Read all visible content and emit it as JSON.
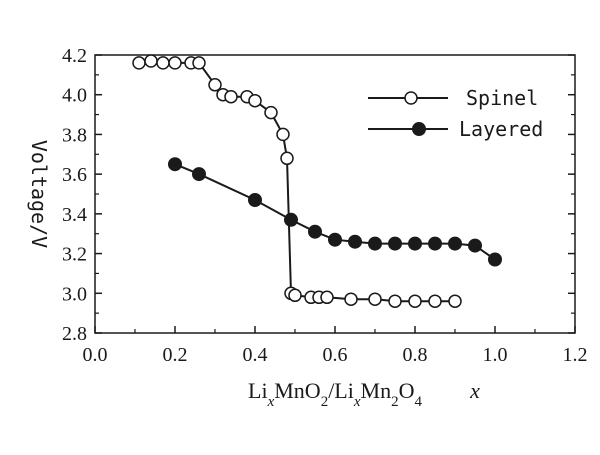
{
  "chart_data": {
    "type": "line",
    "title": "",
    "xlabel": {
      "parts": [
        {
          "text": "Li",
          "style": "normal"
        },
        {
          "text": "x",
          "style": "italic-sub"
        },
        {
          "text": "MnO",
          "style": "normal"
        },
        {
          "text": "2",
          "style": "sub"
        },
        {
          "text": "/Li",
          "style": "normal"
        },
        {
          "text": "x",
          "style": "italic-sub"
        },
        {
          "text": "Mn",
          "style": "normal"
        },
        {
          "text": "2",
          "style": "sub"
        },
        {
          "text": "O",
          "style": "normal"
        },
        {
          "text": "4",
          "style": "sub"
        }
      ],
      "variable": "x"
    },
    "ylabel": "Voltage/V",
    "xlim": [
      0.0,
      1.2
    ],
    "ylim": [
      2.8,
      4.2
    ],
    "xticks": [
      "0.0",
      "0.2",
      "0.4",
      "0.6",
      "0.8",
      "1.0",
      "1.2"
    ],
    "yticks": [
      "2.8",
      "3.0",
      "3.2",
      "3.4",
      "3.6",
      "3.8",
      "4.0",
      "4.2"
    ],
    "grid": false,
    "legend_position": "top-right",
    "series": [
      {
        "name": "Spinel",
        "marker": "open-circle",
        "color": "#1a1a1a",
        "points": [
          [
            0.11,
            4.16
          ],
          [
            0.14,
            4.17
          ],
          [
            0.17,
            4.16
          ],
          [
            0.2,
            4.16
          ],
          [
            0.24,
            4.16
          ],
          [
            0.26,
            4.16
          ],
          [
            0.3,
            4.05
          ],
          [
            0.32,
            4.0
          ],
          [
            0.34,
            3.99
          ],
          [
            0.38,
            3.99
          ],
          [
            0.4,
            3.97
          ],
          [
            0.44,
            3.91
          ],
          [
            0.47,
            3.8
          ],
          [
            0.48,
            3.68
          ],
          [
            0.49,
            3.0
          ],
          [
            0.5,
            2.99
          ],
          [
            0.54,
            2.98
          ],
          [
            0.56,
            2.98
          ],
          [
            0.58,
            2.98
          ],
          [
            0.64,
            2.97
          ],
          [
            0.7,
            2.97
          ],
          [
            0.75,
            2.96
          ],
          [
            0.8,
            2.96
          ],
          [
            0.85,
            2.96
          ],
          [
            0.9,
            2.96
          ]
        ]
      },
      {
        "name": "Layered",
        "marker": "filled-circle",
        "color": "#1a1a1a",
        "points": [
          [
            0.2,
            3.65
          ],
          [
            0.26,
            3.6
          ],
          [
            0.4,
            3.47
          ],
          [
            0.49,
            3.37
          ],
          [
            0.55,
            3.31
          ],
          [
            0.6,
            3.27
          ],
          [
            0.65,
            3.26
          ],
          [
            0.7,
            3.25
          ],
          [
            0.75,
            3.25
          ],
          [
            0.8,
            3.25
          ],
          [
            0.85,
            3.25
          ],
          [
            0.9,
            3.25
          ],
          [
            0.95,
            3.24
          ],
          [
            1.0,
            3.17
          ]
        ]
      }
    ]
  }
}
